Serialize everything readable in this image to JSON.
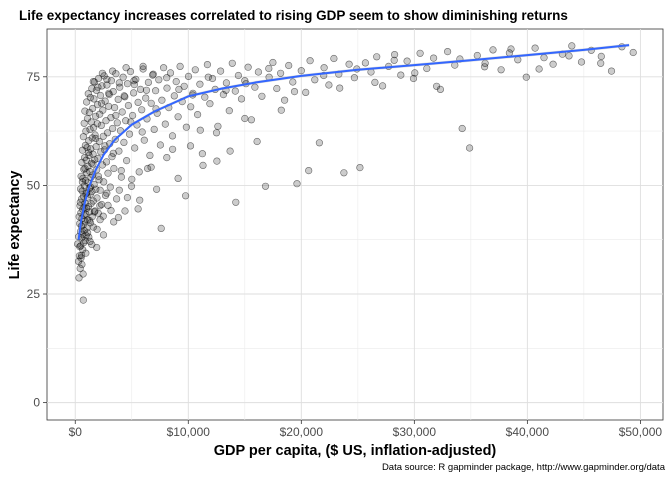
{
  "chart_data": {
    "type": "scatter",
    "title": "Life expectancy increases correlated to rising GDP seem to show diminishing returns",
    "xlabel": "GDP per capita, ($ US, inflation-adjusted)",
    "ylabel": "Life expectancy",
    "caption": "Data source: R gapminder package, http://www.gapminder.org/data",
    "xlim": [
      -2500,
      52000
    ],
    "ylim": [
      -4,
      86
    ],
    "x_ticks": [
      0,
      10000,
      20000,
      30000,
      40000,
      50000
    ],
    "x_tick_labels": [
      "$0",
      "$10,000",
      "$20,000",
      "$30,000",
      "$40,000",
      "$50,000"
    ],
    "y_ticks": [
      0,
      25,
      50,
      75
    ],
    "y_tick_labels": [
      "0",
      "25",
      "50",
      "75"
    ],
    "grid": true,
    "point_color": "#000000",
    "point_alpha": 0.2,
    "trend_color": "#3366ff",
    "trend_band_color": "#999999",
    "trend": {
      "x": [
        300,
        500,
        800,
        1200,
        1800,
        2500,
        3500,
        5000,
        7000,
        10000,
        13000,
        16000,
        20000,
        25000,
        30000,
        35000,
        40000,
        45000,
        49000
      ],
      "y": [
        37.5,
        41.5,
        45.5,
        49.5,
        53.5,
        57,
        60.5,
        64,
        67,
        70.5,
        72.3,
        73.7,
        75.2,
        76.6,
        77.7,
        78.8,
        80,
        81.2,
        82.3
      ]
    },
    "points": [
      [
        210,
        36.5
      ],
      [
        290,
        32.5
      ],
      [
        300,
        38.2
      ],
      [
        330,
        28.7
      ],
      [
        370,
        33.8
      ],
      [
        390,
        41.2
      ],
      [
        400,
        35.9
      ],
      [
        420,
        45.3
      ],
      [
        440,
        30.9
      ],
      [
        460,
        39.4
      ],
      [
        470,
        49.2
      ],
      [
        480,
        36.1
      ],
      [
        500,
        43.7
      ],
      [
        510,
        33.3
      ],
      [
        520,
        52.1
      ],
      [
        540,
        40.6
      ],
      [
        550,
        37.9
      ],
      [
        560,
        46.9
      ],
      [
        580,
        55.3
      ],
      [
        590,
        31.8
      ],
      [
        600,
        42.4
      ],
      [
        610,
        48.7
      ],
      [
        620,
        38.8
      ],
      [
        640,
        58.1
      ],
      [
        650,
        44.5
      ],
      [
        660,
        35.2
      ],
      [
        680,
        51.6
      ],
      [
        700,
        40.9
      ],
      [
        710,
        23.6
      ],
      [
        720,
        61.2
      ],
      [
        730,
        47.5
      ],
      [
        750,
        36.8
      ],
      [
        760,
        53.7
      ],
      [
        780,
        43.1
      ],
      [
        790,
        64.3
      ],
      [
        800,
        39.6
      ],
      [
        810,
        49.9
      ],
      [
        830,
        56.4
      ],
      [
        840,
        41.8
      ],
      [
        850,
        67.1
      ],
      [
        860,
        45.9
      ],
      [
        880,
        37.3
      ],
      [
        900,
        59.2
      ],
      [
        910,
        51.1
      ],
      [
        920,
        43.4
      ],
      [
        940,
        62.5
      ],
      [
        950,
        48.1
      ],
      [
        960,
        38.5
      ],
      [
        980,
        55.8
      ],
      [
        1000,
        69.2
      ],
      [
        1000,
        44.7
      ],
      [
        1020,
        52.9
      ],
      [
        1040,
        40.2
      ],
      [
        1050,
        58.7
      ],
      [
        1070,
        47.3
      ],
      [
        1080,
        65.4
      ],
      [
        1100,
        42.1
      ],
      [
        1120,
        54.4
      ],
      [
        1140,
        50.6
      ],
      [
        1150,
        71.1
      ],
      [
        1170,
        45.1
      ],
      [
        1190,
        60.3
      ],
      [
        1200,
        38.1
      ],
      [
        1220,
        56.9
      ],
      [
        1240,
        49.4
      ],
      [
        1250,
        66.8
      ],
      [
        1270,
        43.9
      ],
      [
        1290,
        53.2
      ],
      [
        1300,
        62.9
      ],
      [
        1320,
        47.9
      ],
      [
        1340,
        70.2
      ],
      [
        1350,
        41.4
      ],
      [
        1370,
        58.4
      ],
      [
        1390,
        51.8
      ],
      [
        1400,
        45.8
      ],
      [
        1420,
        64.6
      ],
      [
        1440,
        55.1
      ],
      [
        1460,
        72.3
      ],
      [
        1480,
        48.6
      ],
      [
        1500,
        60.9
      ],
      [
        1500,
        42.8
      ],
      [
        1530,
        67.7
      ],
      [
        1550,
        52.4
      ],
      [
        1570,
        57.2
      ],
      [
        1600,
        46.4
      ],
      [
        1620,
        63.3
      ],
      [
        1650,
        69.9
      ],
      [
        1670,
        50.2
      ],
      [
        1700,
        73.8
      ],
      [
        1720,
        55.9
      ],
      [
        1740,
        44.1
      ],
      [
        1760,
        61.6
      ],
      [
        1800,
        65.9
      ],
      [
        1820,
        49.1
      ],
      [
        1840,
        58.9
      ],
      [
        1870,
        71.9
      ],
      [
        1900,
        53.6
      ],
      [
        1920,
        47.1
      ],
      [
        1950,
        64.2
      ],
      [
        1970,
        68.6
      ],
      [
        2000,
        56.2
      ],
      [
        2030,
        43.6
      ],
      [
        2060,
        74.6
      ],
      [
        2100,
        51.3
      ],
      [
        2130,
        60.1
      ],
      [
        2160,
        66.4
      ],
      [
        2200,
        48.9
      ],
      [
        2230,
        70.7
      ],
      [
        2260,
        57.7
      ],
      [
        2300,
        63.8
      ],
      [
        2330,
        45.6
      ],
      [
        2360,
        72.9
      ],
      [
        2400,
        54.7
      ],
      [
        2440,
        67.3
      ],
      [
        2480,
        61.3
      ],
      [
        2520,
        50.8
      ],
      [
        2550,
        75.2
      ],
      [
        2600,
        58.2
      ],
      [
        2640,
        69.4
      ],
      [
        2680,
        47.7
      ],
      [
        2720,
        64.9
      ],
      [
        2760,
        55.4
      ],
      [
        2800,
        73.1
      ],
      [
        2850,
        62.1
      ],
      [
        2900,
        52.8
      ],
      [
        2950,
        68.2
      ],
      [
        3000,
        70.9
      ],
      [
        3050,
        59.6
      ],
      [
        3100,
        49.6
      ],
      [
        3150,
        65.6
      ],
      [
        3200,
        74.1
      ],
      [
        3250,
        56.6
      ],
      [
        3300,
        63.1
      ],
      [
        3360,
        71.6
      ],
      [
        3420,
        53.9
      ],
      [
        3480,
        67.9
      ],
      [
        3540,
        60.6
      ],
      [
        3600,
        75.7
      ],
      [
        3660,
        46.9
      ],
      [
        3720,
        64.4
      ],
      [
        3800,
        69.8
      ],
      [
        3860,
        57.9
      ],
      [
        3930,
        72.6
      ],
      [
        4000,
        62.6
      ],
      [
        4080,
        51.9
      ],
      [
        4150,
        66.9
      ],
      [
        4230,
        74.9
      ],
      [
        4300,
        59.9
      ],
      [
        4380,
        70.4
      ],
      [
        4460,
        64.9
      ],
      [
        4540,
        55.7
      ],
      [
        4620,
        73.4
      ],
      [
        4700,
        68.4
      ],
      [
        4800,
        61.8
      ],
      [
        4890,
        76.2
      ],
      [
        4980,
        49.8
      ],
      [
        5070,
        66.1
      ],
      [
        5160,
        71.3
      ],
      [
        5260,
        58.6
      ],
      [
        5360,
        74.4
      ],
      [
        5460,
        63.9
      ],
      [
        5560,
        69.1
      ],
      [
        5660,
        53.1
      ],
      [
        5770,
        72.1
      ],
      [
        5880,
        67.4
      ],
      [
        6000,
        76.8
      ],
      [
        6110,
        60.4
      ],
      [
        6230,
        70.1
      ],
      [
        6350,
        65.3
      ],
      [
        6470,
        73.7
      ],
      [
        6600,
        56.9
      ],
      [
        6720,
        68.9
      ],
      [
        6850,
        75.4
      ],
      [
        6980,
        62.9
      ],
      [
        7110,
        71.8
      ],
      [
        7250,
        66.6
      ],
      [
        7390,
        74.3
      ],
      [
        7530,
        59.3
      ],
      [
        7670,
        69.6
      ],
      [
        7820,
        77.1
      ],
      [
        7970,
        64.1
      ],
      [
        8120,
        72.4
      ],
      [
        8280,
        67.9
      ],
      [
        8430,
        75.9
      ],
      [
        8600,
        61.4
      ],
      [
        8760,
        70.6
      ],
      [
        8930,
        73.9
      ],
      [
        9100,
        65.8
      ],
      [
        9280,
        77.4
      ],
      [
        9460,
        69.3
      ],
      [
        9640,
        72.8
      ],
      [
        9830,
        63.4
      ],
      [
        10020,
        75.1
      ],
      [
        10210,
        68.1
      ],
      [
        10410,
        71.2
      ],
      [
        10620,
        76.6
      ],
      [
        10820,
        66.3
      ],
      [
        11030,
        73.3
      ],
      [
        11250,
        57.3
      ],
      [
        11460,
        70.3
      ],
      [
        11690,
        77.8
      ],
      [
        11910,
        68.8
      ],
      [
        12140,
        74.6
      ],
      [
        12380,
        72.1
      ],
      [
        12620,
        63.6
      ],
      [
        12860,
        76.3
      ],
      [
        13110,
        70.9
      ],
      [
        13370,
        73.6
      ],
      [
        13630,
        67.2
      ],
      [
        13890,
        78.1
      ],
      [
        14160,
        71.7
      ],
      [
        14430,
        75.3
      ],
      [
        14710,
        69.9
      ],
      [
        15000,
        74.1
      ],
      [
        15290,
        77.2
      ],
      [
        15580,
        65.1
      ],
      [
        15890,
        72.6
      ],
      [
        16200,
        76.1
      ],
      [
        16510,
        70.5
      ],
      [
        16830,
        49.8
      ],
      [
        17150,
        74.9
      ],
      [
        17490,
        78.3
      ],
      [
        17830,
        72.3
      ],
      [
        18170,
        75.8
      ],
      [
        18520,
        69.6
      ],
      [
        18880,
        77.6
      ],
      [
        19250,
        73.8
      ],
      [
        19620,
        50.4
      ],
      [
        20000,
        76.4
      ],
      [
        20390,
        71.4
      ],
      [
        20780,
        78.7
      ],
      [
        21190,
        74.3
      ],
      [
        21600,
        59.8
      ],
      [
        22020,
        77.1
      ],
      [
        22440,
        73.1
      ],
      [
        22880,
        79.2
      ],
      [
        23320,
        75.6
      ],
      [
        23770,
        52.9
      ],
      [
        24230,
        77.9
      ],
      [
        24700,
        74.8
      ],
      [
        25180,
        54.1
      ],
      [
        25670,
        78.2
      ],
      [
        26170,
        76.1
      ],
      [
        26670,
        79.6
      ],
      [
        27190,
        72.9
      ],
      [
        27720,
        77.4
      ],
      [
        28250,
        80.1
      ],
      [
        28800,
        75.4
      ],
      [
        29360,
        78.6
      ],
      [
        29930,
        74.6
      ],
      [
        30510,
        80.4
      ],
      [
        31100,
        76.9
      ],
      [
        31700,
        79.3
      ],
      [
        32310,
        72.1
      ],
      [
        32940,
        80.8
      ],
      [
        33580,
        77.7
      ],
      [
        34230,
        63.1
      ],
      [
        34890,
        58.6
      ],
      [
        35570,
        79.9
      ],
      [
        36260,
        78.1
      ],
      [
        36960,
        81.2
      ],
      [
        37680,
        76.6
      ],
      [
        38410,
        80.5
      ],
      [
        39150,
        78.9
      ],
      [
        39910,
        74.9
      ],
      [
        40680,
        81.6
      ],
      [
        41470,
        79.4
      ],
      [
        42280,
        77.9
      ],
      [
        43100,
        80.2
      ],
      [
        43930,
        82.1
      ],
      [
        44790,
        78.4
      ],
      [
        45660,
        81.1
      ],
      [
        46540,
        79.7
      ],
      [
        47440,
        76.3
      ],
      [
        48360,
        81.9
      ],
      [
        49360,
        80.6
      ],
      [
        350,
        42.8
      ],
      [
        450,
        46.1
      ],
      [
        560,
        33.9
      ],
      [
        630,
        50.8
      ],
      [
        690,
        29.6
      ],
      [
        770,
        44.9
      ],
      [
        860,
        53.9
      ],
      [
        930,
        34.4
      ],
      [
        1010,
        48.3
      ],
      [
        1090,
        39.1
      ],
      [
        1180,
        57.6
      ],
      [
        1260,
        41.9
      ],
      [
        1360,
        49.6
      ],
      [
        1460,
        36.4
      ],
      [
        1560,
        54.9
      ],
      [
        1690,
        43.9
      ],
      [
        1810,
        60.8
      ],
      [
        1930,
        39.9
      ],
      [
        2050,
        52.1
      ],
      [
        2180,
        45.3
      ],
      [
        2320,
        68.9
      ],
      [
        2470,
        42.9
      ],
      [
        2620,
        59.1
      ],
      [
        2790,
        48.2
      ],
      [
        2970,
        71.2
      ],
      [
        3160,
        44.2
      ],
      [
        3370,
        57.4
      ],
      [
        3590,
        66.1
      ],
      [
        3820,
        42.6
      ],
      [
        4070,
        53.4
      ],
      [
        4330,
        70.6
      ],
      [
        4610,
        47.2
      ],
      [
        4910,
        64.6
      ],
      [
        5230,
        73.2
      ],
      [
        5560,
        44.6
      ],
      [
        5920,
        62.3
      ],
      [
        6300,
        71.9
      ],
      [
        6710,
        54.2
      ],
      [
        7140,
        67.6
      ],
      [
        7600,
        40.1
      ],
      [
        8090,
        74.8
      ],
      [
        8610,
        58.3
      ],
      [
        9170,
        72.1
      ],
      [
        9760,
        47.6
      ],
      [
        10390,
        70.8
      ],
      [
        11060,
        62.7
      ],
      [
        11770,
        74.9
      ],
      [
        12530,
        55.6
      ],
      [
        13340,
        71.9
      ],
      [
        14200,
        46.1
      ],
      [
        15110,
        73.4
      ],
      [
        16090,
        60.1
      ],
      [
        17120,
        76.9
      ],
      [
        18230,
        67.3
      ],
      [
        19400,
        71.6
      ],
      [
        20650,
        53.4
      ],
      [
        21980,
        75.3
      ],
      [
        23400,
        72.4
      ],
      [
        24910,
        76.8
      ],
      [
        26510,
        73.7
      ],
      [
        28220,
        78.8
      ],
      [
        30040,
        75.9
      ],
      [
        31970,
        72.8
      ],
      [
        34030,
        79.1
      ],
      [
        36220,
        77.3
      ],
      [
        38550,
        81.4
      ],
      [
        41040,
        76.8
      ],
      [
        43680,
        79.8
      ],
      [
        46490,
        78.1
      ],
      [
        1600,
        73.9
      ],
      [
        2000,
        72.6
      ],
      [
        2400,
        75.8
      ],
      [
        2800,
        74.4
      ],
      [
        3300,
        76.3
      ],
      [
        3900,
        73.6
      ],
      [
        4500,
        77.1
      ],
      [
        5200,
        74.1
      ],
      [
        6000,
        77.4
      ],
      [
        6900,
        75.6
      ],
      [
        1300,
        37.1
      ],
      [
        1600,
        40.4
      ],
      [
        1900,
        35.7
      ],
      [
        2200,
        42.1
      ],
      [
        2500,
        38.6
      ],
      [
        2900,
        45.4
      ],
      [
        3400,
        41.6
      ],
      [
        3900,
        48.9
      ],
      [
        4400,
        44.1
      ],
      [
        5000,
        51.4
      ],
      [
        5700,
        46.6
      ],
      [
        6400,
        53.9
      ],
      [
        7200,
        49.1
      ],
      [
        8100,
        56.4
      ],
      [
        9100,
        51.6
      ],
      [
        10200,
        59.1
      ],
      [
        11300,
        54.6
      ],
      [
        12500,
        62.1
      ],
      [
        13700,
        57.9
      ],
      [
        15000,
        65.4
      ]
    ]
  }
}
